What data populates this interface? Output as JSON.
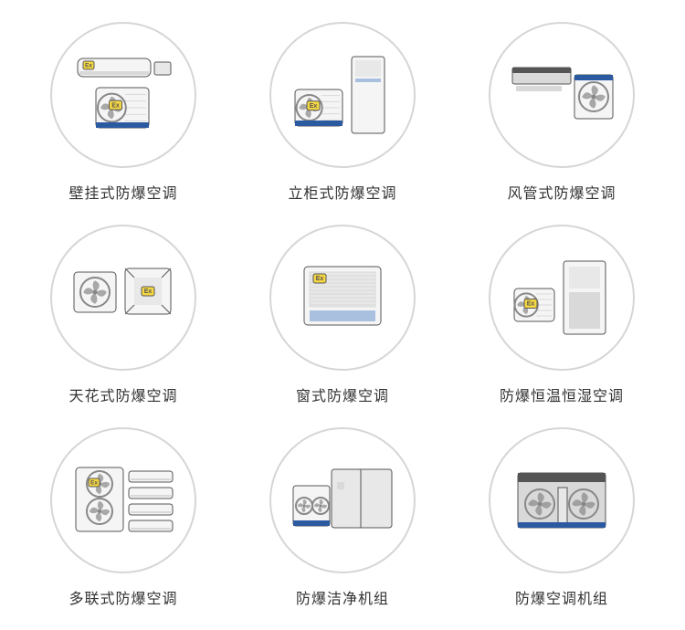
{
  "circle_border_color": "#d6d6d6",
  "label_color": "#333333",
  "label_fontsize": 16,
  "products": [
    {
      "id": "wall-mounted",
      "label": "壁挂式防爆空调",
      "icon": "wall"
    },
    {
      "id": "cabinet",
      "label": "立柜式防爆空调",
      "icon": "cabinet"
    },
    {
      "id": "duct",
      "label": "风管式防爆空调",
      "icon": "duct"
    },
    {
      "id": "ceiling",
      "label": "天花式防爆空调",
      "icon": "ceiling"
    },
    {
      "id": "window",
      "label": "窗式防爆空调",
      "icon": "window"
    },
    {
      "id": "const-temp",
      "label": "防爆恒温恒湿空调",
      "icon": "consttemp"
    },
    {
      "id": "multi-split",
      "label": "多联式防爆空调",
      "icon": "multi"
    },
    {
      "id": "clean",
      "label": "防爆洁净机组",
      "icon": "clean"
    },
    {
      "id": "ac-unit",
      "label": "防爆空调机组",
      "icon": "unit"
    }
  ],
  "colors": {
    "body": "#f5f5f5",
    "body_dark": "#d9d9d9",
    "accent": "#2b5aa0",
    "accent_light": "#a9c0de",
    "panel": "#e8e8e8",
    "outline": "#555555",
    "fan": "#888888",
    "ex_yellow": "#f5d742"
  }
}
